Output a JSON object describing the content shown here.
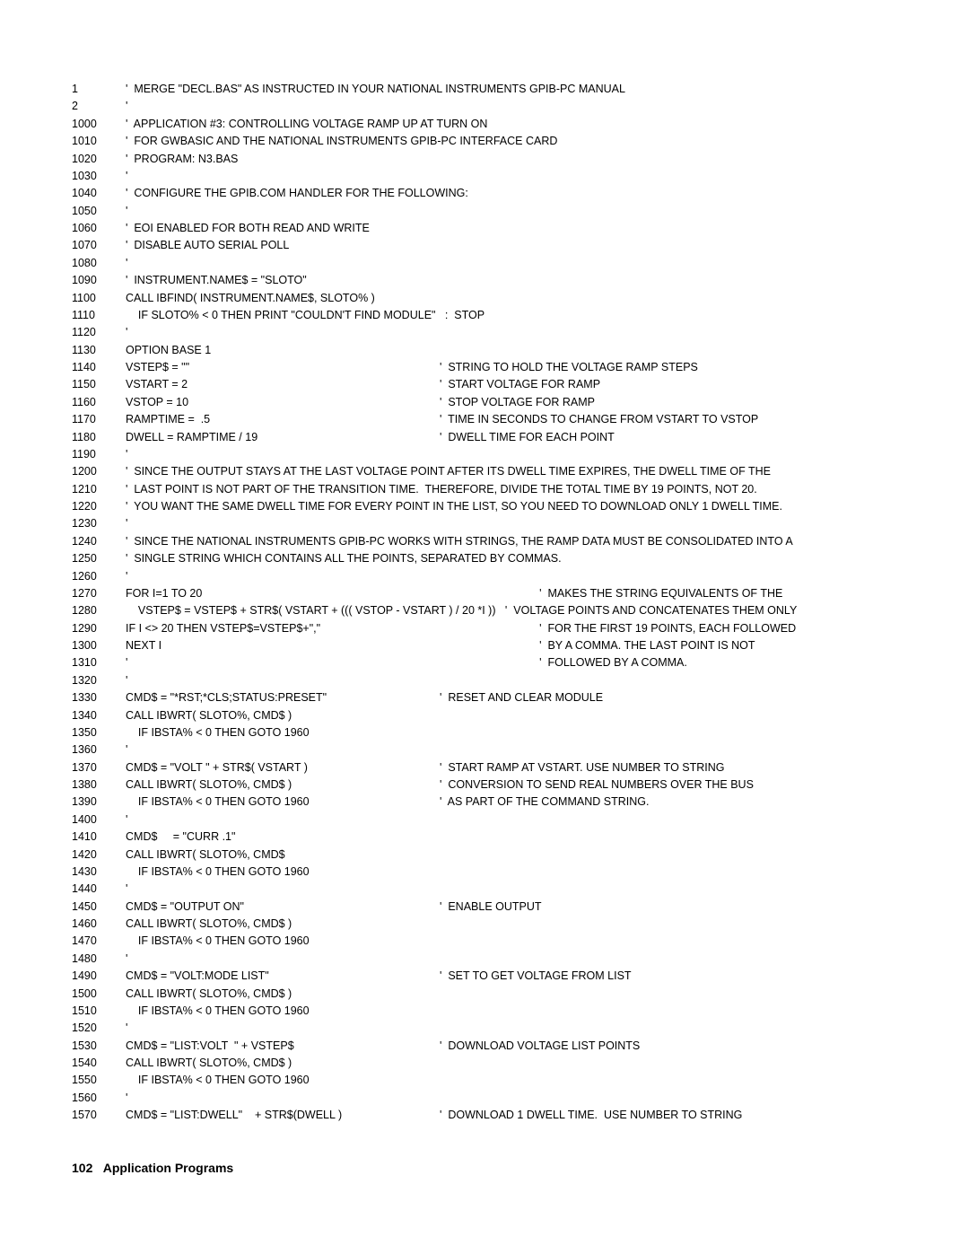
{
  "font": {
    "code_size_pt": 12.5,
    "footer_size_pt": 14,
    "family": "Arial"
  },
  "colors": {
    "text": "#000000",
    "background": "#ffffff"
  },
  "lines": [
    {
      "n": "1",
      "c1": "'  MERGE \"DECL.BAS\" AS INSTRUCTED IN YOUR NATIONAL INSTRUMENTS GPIB-PC MANUAL"
    },
    {
      "n": "2",
      "c1": "'"
    },
    {
      "n": "1000",
      "c1": "'  APPLICATION #3: CONTROLLING VOLTAGE RAMP UP AT TURN ON"
    },
    {
      "n": "1010",
      "c1": "'  FOR GWBASIC AND THE NATIONAL INSTRUMENTS GPIB-PC INTERFACE CARD"
    },
    {
      "n": "1020",
      "c1": "'  PROGRAM: N3.BAS"
    },
    {
      "n": "1030",
      "c1": "'"
    },
    {
      "n": "1040",
      "c1": "'  CONFIGURE THE GPIB.COM HANDLER FOR THE FOLLOWING:"
    },
    {
      "n": "1050",
      "c1": "'"
    },
    {
      "n": "1060",
      "c1": "'  EOI ENABLED FOR BOTH READ AND WRITE"
    },
    {
      "n": "1070",
      "c1": "'  DISABLE AUTO SERIAL POLL"
    },
    {
      "n": "1080",
      "c1": "'"
    },
    {
      "n": "1090",
      "c1": "'  INSTRUMENT.NAME$ = \"SLOTO\""
    },
    {
      "n": "1100",
      "c1": "CALL IBFIND( INSTRUMENT.NAME$, SLOTO% )"
    },
    {
      "n": "1110",
      "c1": "    IF SLOTO% < 0 THEN PRINT \"COULDN'T FIND MODULE\"   :  STOP"
    },
    {
      "n": "1120",
      "c1": "'"
    },
    {
      "n": "1130",
      "c1": "OPTION BASE 1"
    },
    {
      "n": "1140",
      "c1": "VSTEP$ = \"\"",
      "c2": "'  STRING TO HOLD THE VOLTAGE RAMP STEPS"
    },
    {
      "n": "1150",
      "c1": "VSTART = 2",
      "c2": "'  START VOLTAGE FOR RAMP"
    },
    {
      "n": "1160",
      "c1": "VSTOP = 10",
      "c2": "'  STOP VOLTAGE FOR RAMP"
    },
    {
      "n": "1170",
      "c1": "RAMPTIME =  .5",
      "c2": "'  TIME IN SECONDS TO CHANGE FROM VSTART TO VSTOP"
    },
    {
      "n": "1180",
      "c1": "DWELL = RAMPTIME / 19",
      "c2": "'  DWELL TIME FOR EACH POINT"
    },
    {
      "n": "1190",
      "c1": "'"
    },
    {
      "n": "1200",
      "c1": "'  SINCE THE OUTPUT STAYS AT THE LAST VOLTAGE POINT AFTER ITS DWELL TIME EXPIRES, THE DWELL TIME OF THE"
    },
    {
      "n": "1210",
      "c1": "'  LAST POINT IS NOT PART OF THE TRANSITION TIME.  THEREFORE, DIVIDE THE TOTAL TIME BY 19 POINTS, NOT 20."
    },
    {
      "n": "1220",
      "c1": "'  YOU WANT THE SAME DWELL TIME FOR EVERY POINT IN THE LIST, SO YOU NEED TO DOWNLOAD ONLY 1 DWELL TIME."
    },
    {
      "n": "1230",
      "c1": "'"
    },
    {
      "n": "1240",
      "c1": "'  SINCE THE NATIONAL INSTRUMENTS GPIB-PC WORKS WITH STRINGS, THE RAMP DATA MUST BE CONSOLIDATED INTO A"
    },
    {
      "n": "1250",
      "c1": "'  SINGLE STRING WHICH CONTAINS ALL THE POINTS, SEPARATED BY COMMAS."
    },
    {
      "n": "1260",
      "c1": "'"
    },
    {
      "n": "1270",
      "c1": "FOR I=1 TO 20",
      "c2": "                                '  MAKES THE STRING EQUIVALENTS OF THE"
    },
    {
      "n": "1280",
      "c1": "    VSTEP$ = VSTEP$ + STR$( VSTART + ((( VSTOP - VSTART ) / 20 *I ))   '  VOLTAGE POINTS AND CONCATENATES THEM ONLY"
    },
    {
      "n": "1290",
      "c1": "IF I <> 20 THEN VSTEP$=VSTEP$+\",\"",
      "c2": "                                '  FOR THE FIRST 19 POINTS, EACH FOLLOWED"
    },
    {
      "n": "1300",
      "c1": "NEXT I",
      "c2": "                                '  BY A COMMA. THE LAST POINT IS NOT"
    },
    {
      "n": "1310",
      "c1": "'",
      "c2": "                                '  FOLLOWED BY A COMMA."
    },
    {
      "n": "1320",
      "c1": "'"
    },
    {
      "n": "1330",
      "c1": "CMD$ = \"*RST;*CLS;STATUS:PRESET\"",
      "c2": "'  RESET AND CLEAR MODULE"
    },
    {
      "n": "1340",
      "c1": "CALL IBWRT( SLOTO%, CMD$ )"
    },
    {
      "n": "1350",
      "c1": "    IF IBSTA% < 0 THEN GOTO 1960"
    },
    {
      "n": "1360",
      "c1": "'"
    },
    {
      "n": "1370",
      "c1": "CMD$ = \"VOLT \" + STR$( VSTART )",
      "c2": "'  START RAMP AT VSTART. USE NUMBER TO STRING"
    },
    {
      "n": "1380",
      "c1": "CALL IBWRT( SLOTO%, CMD$ )",
      "c2": "'  CONVERSION TO SEND REAL NUMBERS OVER THE BUS"
    },
    {
      "n": "1390",
      "c1": "    IF IBSTA% < 0 THEN GOTO 1960",
      "c2": "'  AS PART OF THE COMMAND STRING."
    },
    {
      "n": "1400",
      "c1": "'"
    },
    {
      "n": "1410",
      "c1": "CMD$     = \"CURR .1\""
    },
    {
      "n": "1420",
      "c1": "CALL IBWRT( SLOTO%, CMD$"
    },
    {
      "n": "1430",
      "c1": "    IF IBSTA% < 0 THEN GOTO 1960"
    },
    {
      "n": "1440",
      "c1": "'"
    },
    {
      "n": "1450",
      "c1": "CMD$ = \"OUTPUT ON\"",
      "c2": "'  ENABLE OUTPUT"
    },
    {
      "n": "1460",
      "c1": "CALL IBWRT( SLOTO%, CMD$ )"
    },
    {
      "n": "1470",
      "c1": "    IF IBSTA% < 0 THEN GOTO 1960"
    },
    {
      "n": "1480",
      "c1": "'"
    },
    {
      "n": "1490",
      "c1": "CMD$ = \"VOLT:MODE LIST\"",
      "c2": "'  SET TO GET VOLTAGE FROM LIST"
    },
    {
      "n": "1500",
      "c1": "CALL IBWRT( SLOTO%, CMD$ )"
    },
    {
      "n": "1510",
      "c1": "    IF IBSTA% < 0 THEN GOTO 1960"
    },
    {
      "n": "1520",
      "c1": "'"
    },
    {
      "n": "1530",
      "c1": "CMD$ = \"LIST:VOLT  \" + VSTEP$",
      "c2": "'  DOWNLOAD VOLTAGE LIST POINTS"
    },
    {
      "n": "1540",
      "c1": "CALL IBWRT( SLOTO%, CMD$ )"
    },
    {
      "n": "1550",
      "c1": "    IF IBSTA% < 0 THEN GOTO 1960"
    },
    {
      "n": "1560",
      "c1": "'"
    },
    {
      "n": "1570",
      "c1": "CMD$ = \"LIST:DWELL\"    + STR$(DWELL )",
      "c2": "'  DOWNLOAD 1 DWELL TIME.  USE NUMBER TO STRING"
    }
  ],
  "footer": {
    "page_number": "102",
    "title": "Application Programs"
  }
}
